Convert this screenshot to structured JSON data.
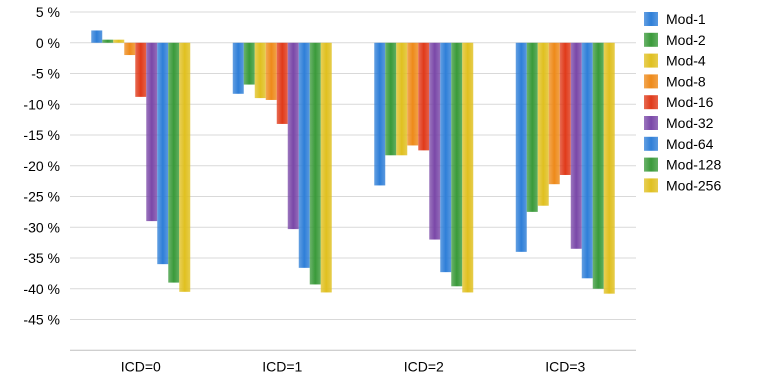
{
  "chart_data": {
    "type": "bar",
    "categories": [
      "ICD=0",
      "ICD=1",
      "ICD=2",
      "ICD=3"
    ],
    "ylim": [
      -50,
      5
    ],
    "yticks": [
      5,
      0,
      -5,
      -10,
      -15,
      -20,
      -25,
      -30,
      -35,
      -40,
      -45
    ],
    "ytick_labels": [
      "5 %",
      "0 %",
      "-5 %",
      "-10 %",
      "-15 %",
      "-20 %",
      "-25 %",
      "-30 %",
      "-35 %",
      "-40 %",
      "-45 %"
    ],
    "grid": true,
    "legend_position": "right",
    "series": [
      {
        "name": "Mod-1",
        "color": "#2f7fd8",
        "values": [
          2.0,
          -8.3,
          -23.2,
          -34.0
        ]
      },
      {
        "name": "Mod-2",
        "color": "#3a9a3a",
        "values": [
          0.5,
          -6.8,
          -18.3,
          -27.5
        ]
      },
      {
        "name": "Mod-4",
        "color": "#e0c020",
        "values": [
          0.5,
          -9.0,
          -18.3,
          -26.5
        ]
      },
      {
        "name": "Mod-8",
        "color": "#ee8a1a",
        "values": [
          -2.0,
          -9.3,
          -16.7,
          -23.0
        ]
      },
      {
        "name": "Mod-16",
        "color": "#e03a1a",
        "values": [
          -8.8,
          -13.2,
          -17.5,
          -21.5
        ]
      },
      {
        "name": "Mod-32",
        "color": "#7a48a8",
        "values": [
          -29.0,
          -30.3,
          -32.0,
          -33.5
        ]
      },
      {
        "name": "Mod-64",
        "color": "#2f7fd8",
        "values": [
          -36.0,
          -36.6,
          -37.3,
          -38.3
        ]
      },
      {
        "name": "Mod-128",
        "color": "#3a9a3a",
        "values": [
          -39.0,
          -39.3,
          -39.6,
          -40.0
        ]
      },
      {
        "name": "Mod-256",
        "color": "#e0c020",
        "values": [
          -40.5,
          -40.6,
          -40.6,
          -40.8
        ]
      }
    ]
  }
}
